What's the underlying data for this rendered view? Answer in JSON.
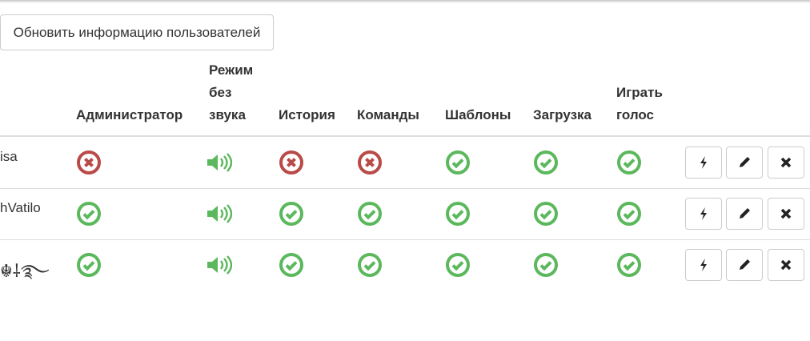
{
  "update_button": "Обновить информацию пользователей",
  "columns": [
    "Администратор",
    "Режим без звука",
    "История",
    "Команды",
    "Шаблоны",
    "Загрузка",
    "Играть голос"
  ],
  "header_lines": {
    "silent": [
      "Режим",
      "без",
      "звука"
    ],
    "play": [
      "Играть",
      "голос"
    ]
  },
  "rows": [
    {
      "name": "isa",
      "admin": false,
      "silent": "speaker-on",
      "history": false,
      "commands": false,
      "templates": true,
      "upload": true,
      "play": true
    },
    {
      "name": "hVatilo",
      "admin": true,
      "silent": "speaker-on",
      "history": true,
      "commands": true,
      "templates": true,
      "upload": true,
      "play": true
    },
    {
      "name": "☬⸸࿐",
      "admin": true,
      "silent": "speaker-on",
      "history": true,
      "commands": true,
      "templates": true,
      "upload": true,
      "play": true
    }
  ],
  "actions": [
    "bolt-icon",
    "pencil-icon",
    "times-icon"
  ],
  "colors": {
    "yes": "#5cb85c",
    "no": "#b94a48"
  }
}
